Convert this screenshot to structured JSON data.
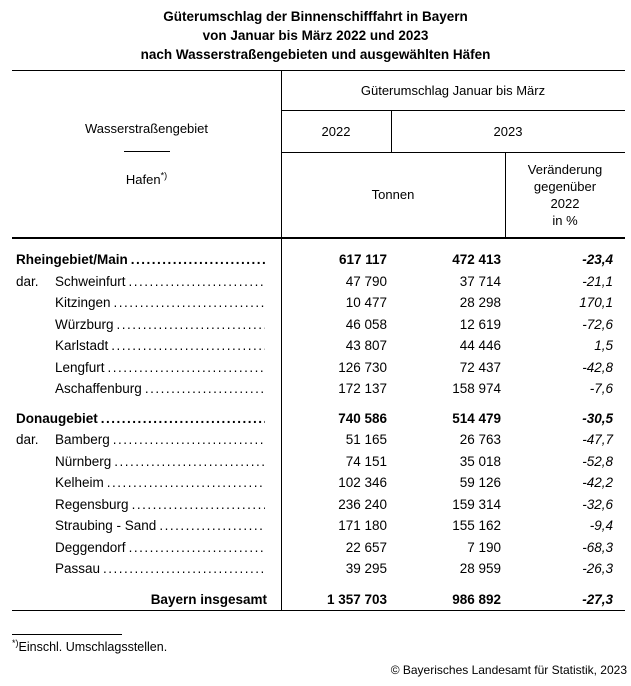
{
  "title": {
    "line1": "Güterumschlag der Binnenschifffahrt in Bayern",
    "line2": "von Januar bis März 2022 und 2023",
    "line3": "nach Wasserstraßengebieten und ausgewählten Häfen"
  },
  "header": {
    "row_label_top": "Wasserstraßengebiet",
    "row_label_bottom": "Hafen",
    "footnote_marker": "*)",
    "col_group": "Güterumschlag Januar bis März",
    "year_left": "2022",
    "year_right": "2023",
    "unit": "Tonnen",
    "change_line1": "Veränderung",
    "change_line2": "gegenüber",
    "change_line3": "2022",
    "change_line4": "in %"
  },
  "table": {
    "leader_dots": "......................................................................",
    "rows": [
      {
        "prefix": "",
        "label": "Rheingebiet/Main",
        "v2022": "617 117",
        "v2023": "472 413",
        "pct": "-23,4"
      },
      {
        "prefix": "dar.",
        "label": "Schweinfurt",
        "v2022": "47 790",
        "v2023": "37 714",
        "pct": "-21,1"
      },
      {
        "prefix": "",
        "label": "Kitzingen",
        "v2022": "10 477",
        "v2023": "28 298",
        "pct": "170,1"
      },
      {
        "prefix": "",
        "label": "Würzburg",
        "v2022": "46 058",
        "v2023": "12 619",
        "pct": "-72,6"
      },
      {
        "prefix": "",
        "label": "Karlstadt",
        "v2022": "43 807",
        "v2023": "44 446",
        "pct": "1,5"
      },
      {
        "prefix": "",
        "label": "Lengfurt",
        "v2022": "126 730",
        "v2023": "72 437",
        "pct": "-42,8"
      },
      {
        "prefix": "",
        "label": "Aschaffenburg",
        "v2022": "172 137",
        "v2023": "158 974",
        "pct": "-7,6"
      },
      {
        "prefix": "",
        "label": "Donaugebiet",
        "v2022": "740 586",
        "v2023": "514 479",
        "pct": "-30,5"
      },
      {
        "prefix": "dar.",
        "label": "Bamberg",
        "v2022": "51 165",
        "v2023": "26 763",
        "pct": "-47,7"
      },
      {
        "prefix": "",
        "label": "Nürnberg",
        "v2022": "74 151",
        "v2023": "35 018",
        "pct": "-52,8"
      },
      {
        "prefix": "",
        "label": "Kelheim",
        "v2022": "102 346",
        "v2023": "59 126",
        "pct": "-42,2"
      },
      {
        "prefix": "",
        "label": "Regensburg",
        "v2022": "236 240",
        "v2023": "159 314",
        "pct": "-32,6"
      },
      {
        "prefix": "",
        "label": "Straubing - Sand",
        "v2022": "171 180",
        "v2023": "155 162",
        "pct": "-9,4"
      },
      {
        "prefix": "",
        "label": "Deggendorf",
        "v2022": "22 657",
        "v2023": "7 190",
        "pct": "-68,3"
      },
      {
        "prefix": "",
        "label": "Passau",
        "v2022": "39 295",
        "v2023": "28 959",
        "pct": "-26,3"
      }
    ],
    "total": {
      "label": "Bayern insgesamt",
      "v2022": "1 357 703",
      "v2023": "986 892",
      "pct": "-27,3"
    }
  },
  "footnote": {
    "marker": "*)",
    "text": "Einschl. Umschlagsstellen."
  },
  "copyright": "© Bayerisches Landesamt für Statistik, 2023"
}
